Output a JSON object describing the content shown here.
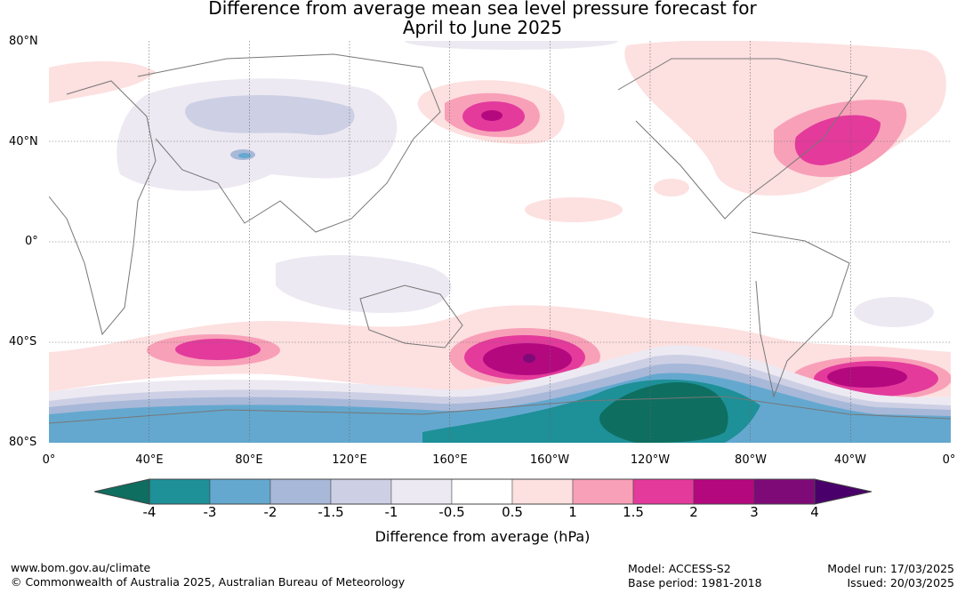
{
  "title_line1": "Difference from average mean sea level pressure forecast for",
  "title_line2": "April to June 2025",
  "latitude_labels": [
    "80°N",
    "40°N",
    "0°",
    "40°S",
    "80°S"
  ],
  "longitude_labels": [
    "0°",
    "40°E",
    "80°E",
    "120°E",
    "160°E",
    "160°W",
    "120°W",
    "80°W",
    "40°W",
    "0°"
  ],
  "colorbar": {
    "tick_labels": [
      "-4",
      "-3",
      "-2",
      "-1.5",
      "-1",
      "-0.5",
      "0.5",
      "1",
      "1.5",
      "2",
      "3",
      "4"
    ],
    "colors": [
      "#0e6e60",
      "#1e9098",
      "#64a8cf",
      "#a8b8d8",
      "#cdd0e5",
      "#ede9f2",
      "#ffffff",
      "#fde0e0",
      "#f8a0b8",
      "#e33a9c",
      "#b4087f",
      "#7e0a78",
      "#4a006a"
    ],
    "label": "Difference from average (hPa)"
  },
  "footer": {
    "website": "www.bom.gov.au/climate",
    "copyright": "© Commonwealth of Australia 2025, Australian Bureau of Meteorology",
    "model": "Model: ACCESS-S2",
    "base_period": "Base period: 1981-2018",
    "model_run": "Model run: 17/03/2025",
    "issued": "Issued: 20/03/2025"
  }
}
